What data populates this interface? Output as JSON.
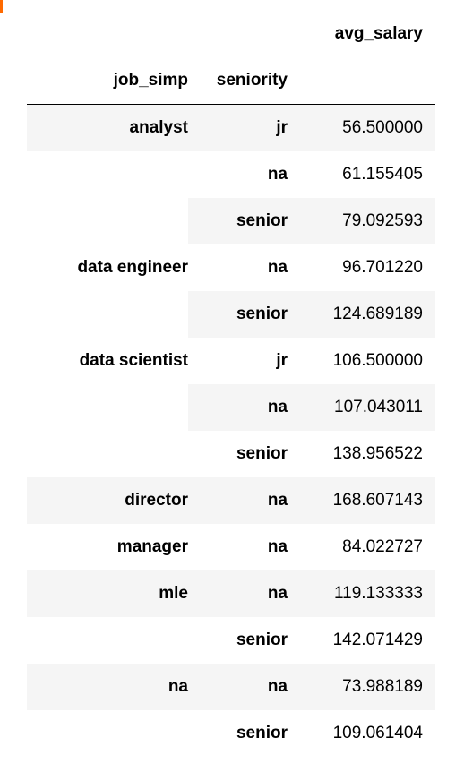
{
  "table": {
    "value_header": "avg_salary",
    "index_headers": [
      "job_simp",
      "seniority"
    ],
    "rows": [
      {
        "job_simp": "analyst",
        "seniority": "jr",
        "avg_salary": "56.500000"
      },
      {
        "job_simp": "",
        "seniority": "na",
        "avg_salary": "61.155405"
      },
      {
        "job_simp": "",
        "seniority": "senior",
        "avg_salary": "79.092593"
      },
      {
        "job_simp": "data engineer",
        "seniority": "na",
        "avg_salary": "96.701220"
      },
      {
        "job_simp": "",
        "seniority": "senior",
        "avg_salary": "124.689189"
      },
      {
        "job_simp": "data scientist",
        "seniority": "jr",
        "avg_salary": "106.500000"
      },
      {
        "job_simp": "",
        "seniority": "na",
        "avg_salary": "107.043011"
      },
      {
        "job_simp": "",
        "seniority": "senior",
        "avg_salary": "138.956522"
      },
      {
        "job_simp": "director",
        "seniority": "na",
        "avg_salary": "168.607143"
      },
      {
        "job_simp": "manager",
        "seniority": "na",
        "avg_salary": "84.022727"
      },
      {
        "job_simp": "mle",
        "seniority": "na",
        "avg_salary": "119.133333"
      },
      {
        "job_simp": "",
        "seniority": "senior",
        "avg_salary": "142.071429"
      },
      {
        "job_simp": "na",
        "seniority": "na",
        "avg_salary": "73.988189"
      },
      {
        "job_simp": "",
        "seniority": "senior",
        "avg_salary": "109.061404"
      }
    ]
  }
}
